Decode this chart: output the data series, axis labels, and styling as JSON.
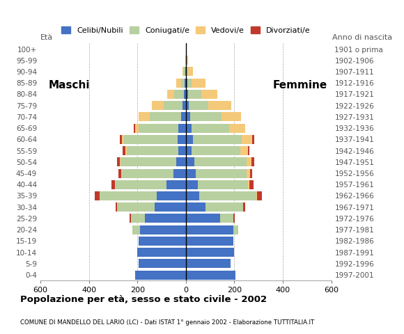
{
  "age_groups": [
    "0-4",
    "5-9",
    "10-14",
    "15-19",
    "20-24",
    "25-29",
    "30-34",
    "35-39",
    "40-44",
    "45-49",
    "50-54",
    "55-59",
    "60-64",
    "65-69",
    "70-74",
    "75-79",
    "80-84",
    "85-89",
    "90-94",
    "95-99",
    "100+"
  ],
  "birth_years": [
    "1997-2001",
    "1992-1996",
    "1987-1991",
    "1982-1986",
    "1977-1981",
    "1972-1976",
    "1967-1971",
    "1962-1966",
    "1957-1961",
    "1952-1956",
    "1947-1951",
    "1942-1946",
    "1937-1941",
    "1932-1936",
    "1927-1931",
    "1922-1926",
    "1917-1921",
    "1912-1916",
    "1907-1911",
    "1902-1906",
    "1901 o prima"
  ],
  "colors": {
    "celibe": "#4472c4",
    "coniugato": "#b8cfa0",
    "vedovo": "#f5c97a",
    "divorziato": "#c0392b"
  },
  "maschi": {
    "celibe": [
      210,
      195,
      200,
      195,
      190,
      170,
      130,
      120,
      80,
      50,
      40,
      30,
      35,
      30,
      20,
      15,
      8,
      4,
      2,
      0,
      0
    ],
    "coniugato": [
      0,
      0,
      0,
      0,
      30,
      55,
      155,
      235,
      210,
      215,
      230,
      215,
      220,
      165,
      130,
      75,
      40,
      15,
      5,
      0,
      0
    ],
    "vedovo": [
      0,
      0,
      0,
      0,
      0,
      0,
      0,
      2,
      2,
      2,
      3,
      5,
      10,
      15,
      45,
      50,
      30,
      20,
      8,
      2,
      0
    ],
    "divorziato": [
      0,
      0,
      0,
      0,
      0,
      8,
      5,
      18,
      14,
      12,
      12,
      10,
      8,
      5,
      0,
      0,
      0,
      0,
      0,
      0,
      0
    ]
  },
  "femmine": {
    "celibe": [
      205,
      185,
      200,
      195,
      195,
      140,
      80,
      55,
      50,
      42,
      35,
      25,
      30,
      25,
      18,
      12,
      10,
      5,
      3,
      0,
      0
    ],
    "coniugato": [
      0,
      0,
      0,
      0,
      20,
      55,
      155,
      235,
      205,
      210,
      215,
      200,
      200,
      155,
      130,
      80,
      55,
      20,
      5,
      0,
      0
    ],
    "vedovo": [
      0,
      0,
      0,
      0,
      0,
      2,
      2,
      5,
      8,
      12,
      20,
      30,
      45,
      65,
      80,
      95,
      65,
      55,
      20,
      8,
      2
    ],
    "divorziato": [
      0,
      0,
      0,
      0,
      0,
      5,
      8,
      20,
      16,
      10,
      12,
      8,
      8,
      0,
      0,
      0,
      0,
      0,
      0,
      0,
      0
    ]
  },
  "xlim": 600,
  "title": "Popolazione per età, sesso e stato civile - 2002",
  "subtitle": "COMUNE DI MANDELLO DEL LARIO (LC) - Dati ISTAT 1° gennaio 2002 - Elaborazione TUTTITALIA.IT",
  "label_eta": "Età",
  "label_anno": "Anno di nascita",
  "label_maschi": "Maschi",
  "label_femmine": "Femmine",
  "legend_labels": [
    "Celibi/Nubili",
    "Coniugati/e",
    "Vedovi/e",
    "Divorziati/e"
  ]
}
